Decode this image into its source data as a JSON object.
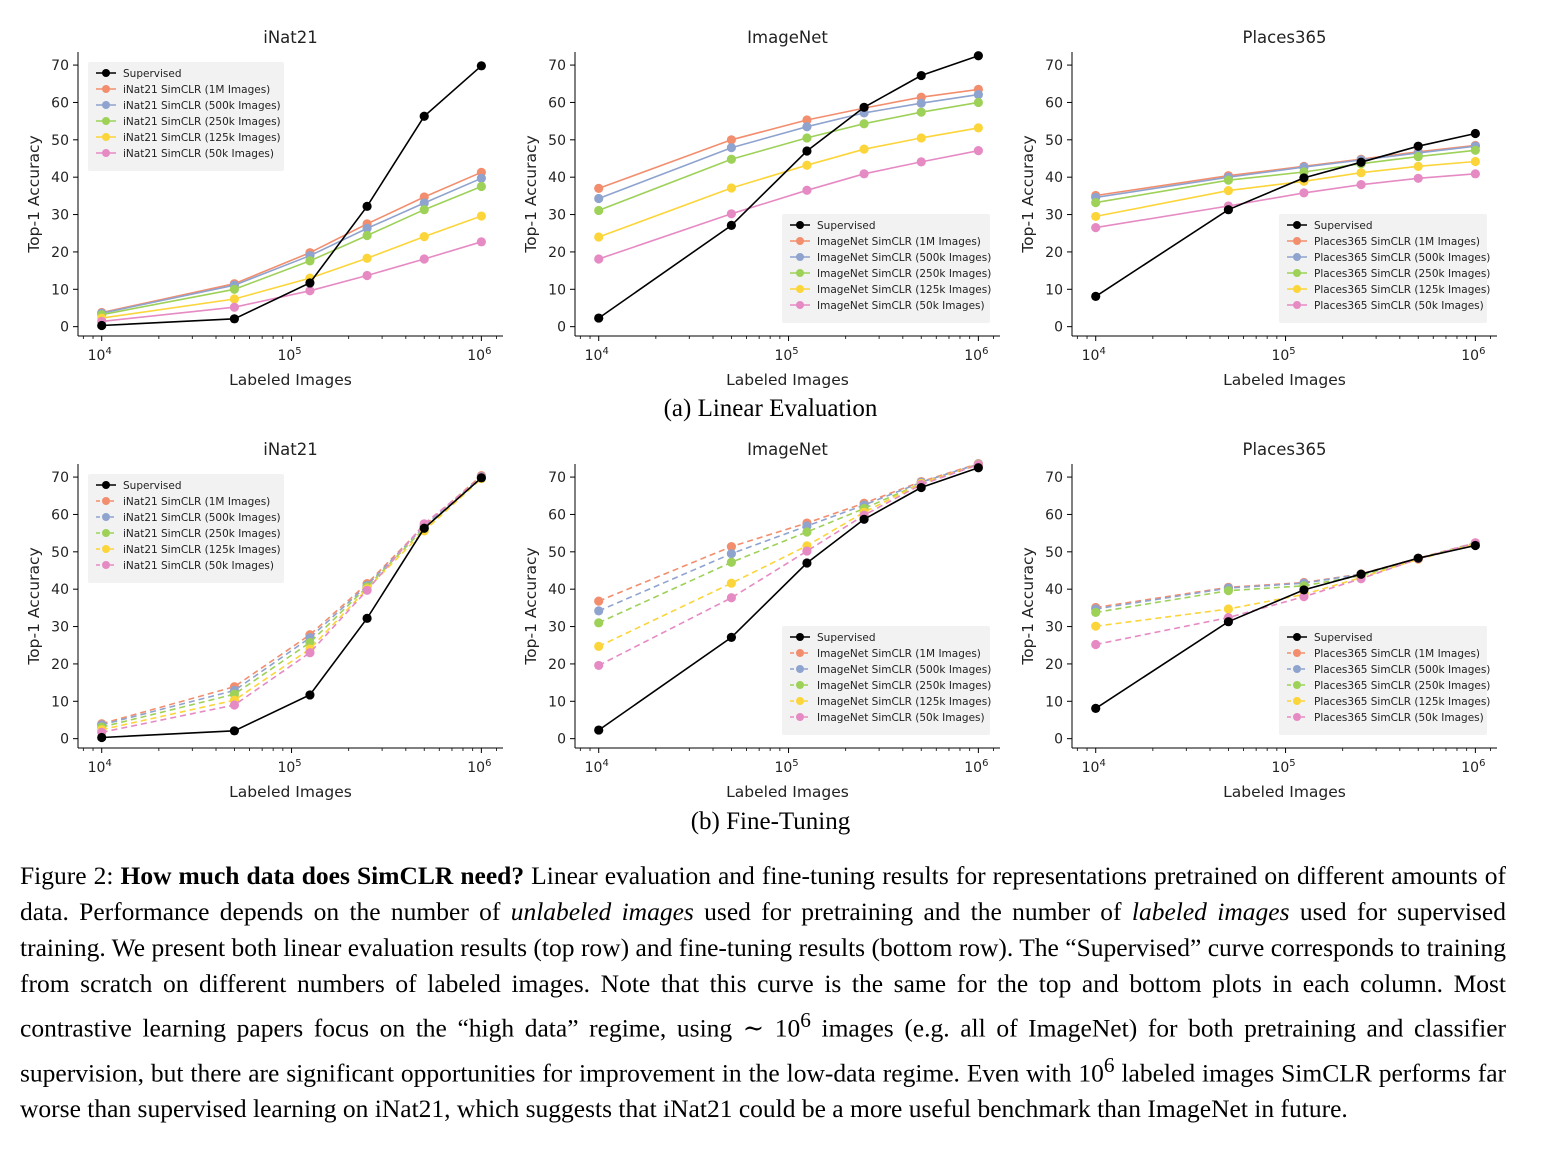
{
  "row_labels": [
    "(a) Linear Evaluation",
    "(b) Fine-Tuning"
  ],
  "caption": {
    "label": "Figure 2:",
    "bold": "How much data does SimCLR need?",
    "seg1": "Linear evaluation and fine-tuning results for representations pretrained on different amounts of data. Performance depends on the number of",
    "ital1": "unlabeled images",
    "seg2": "used for pretraining and the number of",
    "ital2": "labeled images",
    "seg3": "used for supervised training. We present both linear evaluation results (top row) and fine-tuning results (bottom row). The “Supervised” curve corresponds to training from scratch on different numbers of labeled images. Note that this curve is the same for the top and bottom plots in each column. Most contrastive learning papers focus on the “high data” regime, using ∼ 10",
    "sup1": "6",
    "seg4": "images (e.g. all of ImageNet) for both pretraining and classifier supervision, but there are significant opportunities for improvement in the low-data regime. Even with 10",
    "sup2": "6",
    "seg5": "labeled images SimCLR performs far worse than supervised learning on iNat21, which suggests that iNat21 could be a more useful benchmark than ImageNet in future."
  },
  "series_colors": [
    "#000000",
    "#f28e6e",
    "#8fa3cf",
    "#9dd158",
    "#fbd53a",
    "#e68ac4"
  ],
  "chart_data": [
    {
      "type": "line",
      "title": "iNat21",
      "xlabel": "Labeled Images",
      "ylabel": "Top-1 Accuracy",
      "xscale": "log",
      "xlim": [
        7500,
        1300000
      ],
      "ylim": [
        -2.5,
        73.5
      ],
      "xticks": [
        10000,
        100000,
        1000000
      ],
      "xticklabels": [
        "10",
        "10",
        "10"
      ],
      "xtickexp": [
        "4",
        "5",
        "6"
      ],
      "yticks": [
        0,
        10,
        20,
        30,
        40,
        50,
        60,
        70
      ],
      "legend": "top-left",
      "line_style": "solid",
      "series": [
        {
          "name": "Supervised",
          "x": [
            10000,
            50000,
            125000,
            250000,
            500000,
            1000000
          ],
          "y": [
            0.3,
            2.1,
            11.7,
            32.2,
            56.3,
            69.8
          ]
        },
        {
          "name": "iNat21 SimCLR (1M Images)",
          "x": [
            10000,
            50000,
            125000,
            250000,
            500000,
            1000000
          ],
          "y": [
            3.8,
            11.5,
            19.8,
            27.5,
            34.7,
            41.3
          ]
        },
        {
          "name": "iNat21 SimCLR (500k Images)",
          "x": [
            10000,
            50000,
            125000,
            250000,
            500000,
            1000000
          ],
          "y": [
            3.6,
            11.1,
            19.0,
            26.3,
            33.1,
            39.7
          ]
        },
        {
          "name": "iNat21 SimCLR (250k Images)",
          "x": [
            10000,
            50000,
            125000,
            250000,
            500000,
            1000000
          ],
          "y": [
            3.2,
            10.0,
            17.6,
            24.4,
            31.3,
            37.5
          ]
        },
        {
          "name": "iNat21 SimCLR (125k Images)",
          "x": [
            10000,
            50000,
            125000,
            250000,
            500000,
            1000000
          ],
          "y": [
            2.3,
            7.4,
            13.0,
            18.3,
            24.1,
            29.6
          ]
        },
        {
          "name": "iNat21 SimCLR (50k Images)",
          "x": [
            10000,
            50000,
            125000,
            250000,
            500000,
            1000000
          ],
          "y": [
            1.4,
            5.2,
            9.6,
            13.7,
            18.1,
            22.7
          ]
        }
      ]
    },
    {
      "type": "line",
      "title": "ImageNet",
      "xlabel": "Labeled Images",
      "ylabel": "Top-1 Accuracy",
      "xscale": "log",
      "xlim": [
        7500,
        1300000
      ],
      "ylim": [
        -2.5,
        73.5
      ],
      "xticks": [
        10000,
        100000,
        1000000
      ],
      "xticklabels": [
        "10",
        "10",
        "10"
      ],
      "xtickexp": [
        "4",
        "5",
        "6"
      ],
      "yticks": [
        0,
        10,
        20,
        30,
        40,
        50,
        60,
        70
      ],
      "legend": "bottom-right",
      "line_style": "solid",
      "series": [
        {
          "name": "Supervised",
          "x": [
            10000,
            50000,
            125000,
            250000,
            500000,
            1000000
          ],
          "y": [
            2.3,
            27.1,
            47.0,
            58.7,
            67.2,
            72.5
          ]
        },
        {
          "name": "ImageNet SimCLR (1M Images)",
          "x": [
            10000,
            50000,
            125000,
            250000,
            500000,
            1000000
          ],
          "y": [
            37.0,
            50.0,
            55.3,
            58.5,
            61.4,
            63.5
          ]
        },
        {
          "name": "ImageNet SimCLR (500k Images)",
          "x": [
            10000,
            50000,
            125000,
            250000,
            500000,
            1000000
          ],
          "y": [
            34.3,
            47.9,
            53.5,
            57.2,
            59.8,
            62.1
          ]
        },
        {
          "name": "ImageNet SimCLR (250k Images)",
          "x": [
            10000,
            50000,
            125000,
            250000,
            500000,
            1000000
          ],
          "y": [
            31.1,
            44.8,
            50.5,
            54.3,
            57.4,
            60.0
          ]
        },
        {
          "name": "ImageNet SimCLR (125k Images)",
          "x": [
            10000,
            50000,
            125000,
            250000,
            500000,
            1000000
          ],
          "y": [
            24.0,
            37.1,
            43.2,
            47.5,
            50.5,
            53.2
          ]
        },
        {
          "name": "ImageNet SimCLR (50k Images)",
          "x": [
            10000,
            50000,
            125000,
            250000,
            500000,
            1000000
          ],
          "y": [
            18.1,
            30.2,
            36.5,
            40.9,
            44.1,
            47.1
          ]
        }
      ]
    },
    {
      "type": "line",
      "title": "Places365",
      "xlabel": "Labeled Images",
      "ylabel": "Top-1 Accuracy",
      "xscale": "log",
      "xlim": [
        7500,
        1300000
      ],
      "ylim": [
        -2.5,
        73.5
      ],
      "xticks": [
        10000,
        100000,
        1000000
      ],
      "xticklabels": [
        "10",
        "10",
        "10"
      ],
      "xtickexp": [
        "4",
        "5",
        "6"
      ],
      "yticks": [
        0,
        10,
        20,
        30,
        40,
        50,
        60,
        70
      ],
      "legend": "bottom-right",
      "line_style": "solid",
      "series": [
        {
          "name": "Supervised",
          "x": [
            10000,
            50000,
            125000,
            250000,
            500000,
            1000000
          ],
          "y": [
            8.1,
            31.3,
            39.8,
            44.0,
            48.3,
            51.7
          ]
        },
        {
          "name": "Places365 SimCLR (1M Images)",
          "x": [
            10000,
            50000,
            125000,
            250000,
            500000,
            1000000
          ],
          "y": [
            35.1,
            40.4,
            42.9,
            44.8,
            46.8,
            48.5
          ]
        },
        {
          "name": "Places365 SimCLR (500k Images)",
          "x": [
            10000,
            50000,
            125000,
            250000,
            500000,
            1000000
          ],
          "y": [
            34.6,
            40.0,
            42.7,
            44.6,
            46.5,
            48.3
          ]
        },
        {
          "name": "Places365 SimCLR (250k Images)",
          "x": [
            10000,
            50000,
            125000,
            250000,
            500000,
            1000000
          ],
          "y": [
            33.2,
            39.2,
            41.4,
            43.6,
            45.5,
            47.2
          ]
        },
        {
          "name": "Places365 SimCLR (125k Images)",
          "x": [
            10000,
            50000,
            125000,
            250000,
            500000,
            1000000
          ],
          "y": [
            29.5,
            36.4,
            38.9,
            41.2,
            42.9,
            44.2
          ]
        },
        {
          "name": "Places365 SimCLR (50k Images)",
          "x": [
            10000,
            50000,
            125000,
            250000,
            500000,
            1000000
          ],
          "y": [
            26.5,
            32.3,
            35.8,
            38.0,
            39.7,
            40.9
          ]
        }
      ]
    },
    {
      "type": "line",
      "title": "iNat21",
      "xlabel": "Labeled Images",
      "ylabel": "Top-1 Accuracy",
      "xscale": "log",
      "xlim": [
        7500,
        1300000
      ],
      "ylim": [
        -2.5,
        73.5
      ],
      "xticks": [
        10000,
        100000,
        1000000
      ],
      "xticklabels": [
        "10",
        "10",
        "10"
      ],
      "xtickexp": [
        "4",
        "5",
        "6"
      ],
      "yticks": [
        0,
        10,
        20,
        30,
        40,
        50,
        60,
        70
      ],
      "legend": "top-left",
      "line_style": "dashed",
      "series": [
        {
          "name": "Supervised",
          "x": [
            10000,
            50000,
            125000,
            250000,
            500000,
            1000000
          ],
          "y": [
            0.3,
            2.1,
            11.7,
            32.2,
            56.3,
            69.8
          ]
        },
        {
          "name": "iNat21 SimCLR (1M Images)",
          "x": [
            10000,
            50000,
            125000,
            250000,
            500000,
            1000000
          ],
          "y": [
            4.0,
            13.9,
            27.8,
            41.5,
            57.0,
            70.4
          ]
        },
        {
          "name": "iNat21 SimCLR (500k Images)",
          "x": [
            10000,
            50000,
            125000,
            250000,
            500000,
            1000000
          ],
          "y": [
            3.7,
            12.9,
            27.0,
            41.0,
            56.8,
            70.1
          ]
        },
        {
          "name": "iNat21 SimCLR (250k Images)",
          "x": [
            10000,
            50000,
            125000,
            250000,
            500000,
            1000000
          ],
          "y": [
            3.1,
            11.9,
            25.7,
            40.6,
            56.3,
            69.8
          ]
        },
        {
          "name": "iNat21 SimCLR (125k Images)",
          "x": [
            10000,
            50000,
            125000,
            250000,
            500000,
            1000000
          ],
          "y": [
            2.4,
            10.3,
            24.0,
            40.1,
            55.6,
            69.6
          ]
        },
        {
          "name": "iNat21 SimCLR (50k Images)",
          "x": [
            10000,
            50000,
            125000,
            250000,
            500000,
            1000000
          ],
          "y": [
            1.7,
            9.0,
            23.0,
            39.7,
            57.5,
            69.9
          ]
        }
      ]
    },
    {
      "type": "line",
      "title": "ImageNet",
      "xlabel": "Labeled Images",
      "ylabel": "Top-1 Accuracy",
      "xscale": "log",
      "xlim": [
        7500,
        1300000
      ],
      "ylim": [
        -2.5,
        73.5
      ],
      "xticks": [
        10000,
        100000,
        1000000
      ],
      "xticklabels": [
        "10",
        "10",
        "10"
      ],
      "xtickexp": [
        "4",
        "5",
        "6"
      ],
      "yticks": [
        0,
        10,
        20,
        30,
        40,
        50,
        60,
        70
      ],
      "legend": "bottom-right",
      "line_style": "dashed",
      "series": [
        {
          "name": "Supervised",
          "x": [
            10000,
            50000,
            125000,
            250000,
            500000,
            1000000
          ],
          "y": [
            2.3,
            27.1,
            47.0,
            58.7,
            67.2,
            72.5
          ]
        },
        {
          "name": "ImageNet SimCLR (1M Images)",
          "x": [
            10000,
            50000,
            125000,
            250000,
            500000,
            1000000
          ],
          "y": [
            36.8,
            51.4,
            57.7,
            63.0,
            68.8,
            73.6
          ]
        },
        {
          "name": "ImageNet SimCLR (500k Images)",
          "x": [
            10000,
            50000,
            125000,
            250000,
            500000,
            1000000
          ],
          "y": [
            34.2,
            49.5,
            56.9,
            62.5,
            68.6,
            73.5
          ]
        },
        {
          "name": "ImageNet SimCLR (250k Images)",
          "x": [
            10000,
            50000,
            125000,
            250000,
            500000,
            1000000
          ],
          "y": [
            31.0,
            47.2,
            55.3,
            61.6,
            68.3,
            73.4
          ]
        },
        {
          "name": "ImageNet SimCLR (125k Images)",
          "x": [
            10000,
            50000,
            125000,
            250000,
            500000,
            1000000
          ],
          "y": [
            24.7,
            41.6,
            51.6,
            60.6,
            68.3,
            73.3
          ]
        },
        {
          "name": "ImageNet SimCLR (50k Images)",
          "x": [
            10000,
            50000,
            125000,
            250000,
            500000,
            1000000
          ],
          "y": [
            19.6,
            37.7,
            50.2,
            59.8,
            68.0,
            73.3
          ]
        }
      ]
    },
    {
      "type": "line",
      "title": "Places365",
      "xlabel": "Labeled Images",
      "ylabel": "Top-1 Accuracy",
      "xscale": "log",
      "xlim": [
        7500,
        1300000
      ],
      "ylim": [
        -2.5,
        73.5
      ],
      "xticks": [
        10000,
        100000,
        1000000
      ],
      "xticklabels": [
        "10",
        "10",
        "10"
      ],
      "xtickexp": [
        "4",
        "5",
        "6"
      ],
      "yticks": [
        0,
        10,
        20,
        30,
        40,
        50,
        60,
        70
      ],
      "legend": "bottom-right",
      "line_style": "dashed",
      "series": [
        {
          "name": "Supervised",
          "x": [
            10000,
            50000,
            125000,
            250000,
            500000,
            1000000
          ],
          "y": [
            8.1,
            31.3,
            39.8,
            44.0,
            48.3,
            51.7
          ]
        },
        {
          "name": "Places365 SimCLR (1M Images)",
          "x": [
            10000,
            50000,
            125000,
            250000,
            500000,
            1000000
          ],
          "y": [
            35.1,
            40.5,
            41.8,
            44.1,
            48.3,
            52.4
          ]
        },
        {
          "name": "Places365 SimCLR (500k Images)",
          "x": [
            10000,
            50000,
            125000,
            250000,
            500000,
            1000000
          ],
          "y": [
            34.7,
            40.3,
            41.6,
            44.0,
            48.2,
            52.3
          ]
        },
        {
          "name": "Places365 SimCLR (250k Images)",
          "x": [
            10000,
            50000,
            125000,
            250000,
            500000,
            1000000
          ],
          "y": [
            33.8,
            39.6,
            40.9,
            43.6,
            48.2,
            52.2
          ]
        },
        {
          "name": "Places365 SimCLR (125k Images)",
          "x": [
            10000,
            50000,
            125000,
            250000,
            500000,
            1000000
          ],
          "y": [
            30.1,
            34.7,
            38.6,
            43.1,
            48.0,
            52.1
          ]
        },
        {
          "name": "Places365 SimCLR (50k Images)",
          "x": [
            10000,
            50000,
            125000,
            250000,
            500000,
            1000000
          ],
          "y": [
            25.2,
            32.4,
            38.0,
            42.8,
            48.1,
            52.4
          ]
        }
      ]
    }
  ]
}
